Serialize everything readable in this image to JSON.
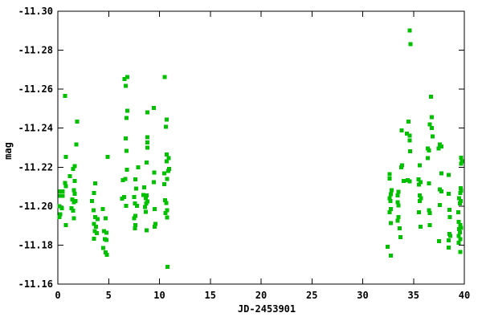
{
  "chart_data": {
    "type": "scatter",
    "title": "",
    "xlabel": "JD-2453901",
    "ylabel": "mag",
    "xlim": [
      0,
      40
    ],
    "ylim_top_to_bottom": [
      -11.3,
      -11.16
    ],
    "y_axis_inverted": true,
    "grid": false,
    "legend": "none",
    "marker": "filled-square",
    "marker_color": "#00c000",
    "marker_size_px": 5,
    "axis_color": "#000000",
    "x_tick_labels": [
      "0",
      "5",
      "10",
      "15",
      "20",
      "25",
      "30",
      "35",
      "40"
    ],
    "y_tick_labels": [
      "-11.30",
      "-11.28",
      "-11.26",
      "-11.24",
      "-11.22",
      "-11.20",
      "-11.18",
      "-11.16"
    ],
    "points": [
      [
        0.71,
        -11.2565
      ],
      [
        1.9,
        -11.2434
      ],
      [
        1.82,
        -11.2317
      ],
      [
        0.79,
        -11.2253
      ],
      [
        1.66,
        -11.2206
      ],
      [
        1.5,
        -11.219
      ],
      [
        1.19,
        -11.2154
      ],
      [
        1.66,
        -11.213
      ],
      [
        0.71,
        -11.2119
      ],
      [
        0.79,
        -11.2102
      ],
      [
        1.58,
        -11.2082
      ],
      [
        0.24,
        -11.2075
      ],
      [
        0.47,
        -11.2075
      ],
      [
        1.66,
        -11.2064
      ],
      [
        0.24,
        -11.2053
      ],
      [
        0.47,
        -11.2053
      ],
      [
        1.42,
        -11.2034
      ],
      [
        1.74,
        -11.2027
      ],
      [
        1.58,
        -11.202
      ],
      [
        0.16,
        -11.1999
      ],
      [
        1.34,
        -11.1989
      ],
      [
        0.4,
        -11.1989
      ],
      [
        1.5,
        -11.1976
      ],
      [
        0.24,
        -11.1958
      ],
      [
        0.16,
        -11.1944
      ],
      [
        1.58,
        -11.1937
      ],
      [
        0.79,
        -11.1902
      ],
      [
        3.69,
        -11.2117
      ],
      [
        3.56,
        -11.2068
      ],
      [
        3.37,
        -11.2027
      ],
      [
        3.5,
        -11.1978
      ],
      [
        3.69,
        -11.1944
      ],
      [
        3.9,
        -11.1933
      ],
      [
        3.56,
        -11.1909
      ],
      [
        3.74,
        -11.1895
      ],
      [
        3.64,
        -11.1872
      ],
      [
        3.82,
        -11.1861
      ],
      [
        3.56,
        -11.1833
      ],
      [
        4.9,
        -11.2253
      ],
      [
        4.43,
        -11.1985
      ],
      [
        4.69,
        -11.1937
      ],
      [
        4.53,
        -11.1872
      ],
      [
        4.8,
        -11.1864
      ],
      [
        4.61,
        -11.1831
      ],
      [
        4.8,
        -11.1827
      ],
      [
        4.48,
        -11.1785
      ],
      [
        4.69,
        -11.1762
      ],
      [
        4.82,
        -11.1751
      ],
      [
        6.82,
        -11.2662
      ],
      [
        6.56,
        -11.2653
      ],
      [
        6.69,
        -11.2618
      ],
      [
        6.82,
        -11.2489
      ],
      [
        6.77,
        -11.2453
      ],
      [
        6.69,
        -11.2348
      ],
      [
        6.77,
        -11.2284
      ],
      [
        6.8,
        -11.2186
      ],
      [
        6.66,
        -11.214
      ],
      [
        6.4,
        -11.2134
      ],
      [
        6.54,
        -11.2047
      ],
      [
        6.32,
        -11.2038
      ],
      [
        6.72,
        -11.2002
      ],
      [
        7.91,
        -11.2199
      ],
      [
        7.64,
        -11.2137
      ],
      [
        7.72,
        -11.2089
      ],
      [
        7.51,
        -11.2047
      ],
      [
        7.59,
        -11.2013
      ],
      [
        7.77,
        -11.2002
      ],
      [
        7.64,
        -11.1951
      ],
      [
        7.51,
        -11.1937
      ],
      [
        7.64,
        -11.1902
      ],
      [
        7.59,
        -11.1886
      ],
      [
        8.8,
        -11.2481
      ],
      [
        8.8,
        -11.2353
      ],
      [
        8.8,
        -11.2326
      ],
      [
        8.8,
        -11.2299
      ],
      [
        8.75,
        -11.2223
      ],
      [
        8.48,
        -11.2096
      ],
      [
        8.43,
        -11.2057
      ],
      [
        8.75,
        -11.2055
      ],
      [
        8.64,
        -11.2041
      ],
      [
        8.83,
        -11.2024
      ],
      [
        8.7,
        -11.2013
      ],
      [
        8.56,
        -11.1996
      ],
      [
        8.64,
        -11.1971
      ],
      [
        8.75,
        -11.1875
      ],
      [
        9.46,
        -11.2503
      ],
      [
        9.49,
        -11.2172
      ],
      [
        9.43,
        -11.2123
      ],
      [
        9.54,
        -11.1985
      ],
      [
        9.62,
        -11.1909
      ],
      [
        9.54,
        -11.1895
      ],
      [
        10.51,
        -11.2662
      ],
      [
        10.72,
        -11.2444
      ],
      [
        10.64,
        -11.2407
      ],
      [
        10.73,
        -11.2264
      ],
      [
        10.91,
        -11.2247
      ],
      [
        10.73,
        -11.2231
      ],
      [
        10.93,
        -11.219
      ],
      [
        10.85,
        -11.2181
      ],
      [
        10.49,
        -11.2168
      ],
      [
        10.75,
        -11.214
      ],
      [
        10.49,
        -11.2112
      ],
      [
        10.54,
        -11.203
      ],
      [
        10.67,
        -11.2016
      ],
      [
        10.75,
        -11.1978
      ],
      [
        10.59,
        -11.1965
      ],
      [
        10.75,
        -11.1941
      ],
      [
        10.8,
        -11.1688
      ],
      [
        32.65,
        -11.2165
      ],
      [
        32.65,
        -11.2141
      ],
      [
        32.83,
        -11.2082
      ],
      [
        32.78,
        -11.2061
      ],
      [
        32.65,
        -11.2041
      ],
      [
        32.73,
        -11.2027
      ],
      [
        32.78,
        -11.1985
      ],
      [
        32.65,
        -11.1968
      ],
      [
        32.78,
        -11.1912
      ],
      [
        32.44,
        -11.1792
      ],
      [
        32.78,
        -11.1746
      ],
      [
        34.62,
        -11.2901
      ],
      [
        34.7,
        -11.2831
      ],
      [
        34.49,
        -11.2434
      ],
      [
        33.83,
        -11.2388
      ],
      [
        34.36,
        -11.2372
      ],
      [
        34.62,
        -11.2362
      ],
      [
        34.62,
        -11.2337
      ],
      [
        34.68,
        -11.2281
      ],
      [
        33.89,
        -11.221
      ],
      [
        33.78,
        -11.2199
      ],
      [
        34.44,
        -11.2133
      ],
      [
        34.05,
        -11.213
      ],
      [
        34.62,
        -11.2127
      ],
      [
        33.52,
        -11.2073
      ],
      [
        33.44,
        -11.2055
      ],
      [
        33.44,
        -11.202
      ],
      [
        33.52,
        -11.2003
      ],
      [
        33.52,
        -11.1944
      ],
      [
        33.44,
        -11.1926
      ],
      [
        33.62,
        -11.1886
      ],
      [
        33.7,
        -11.184
      ],
      [
        36.73,
        -11.2561
      ],
      [
        36.78,
        -11.2457
      ],
      [
        36.6,
        -11.242
      ],
      [
        36.78,
        -11.24
      ],
      [
        36.86,
        -11.2358
      ],
      [
        36.42,
        -11.2296
      ],
      [
        36.52,
        -11.2285
      ],
      [
        36.42,
        -11.2247
      ],
      [
        35.63,
        -11.221
      ],
      [
        35.49,
        -11.2137
      ],
      [
        35.68,
        -11.2123
      ],
      [
        36.52,
        -11.2117
      ],
      [
        35.55,
        -11.211
      ],
      [
        35.63,
        -11.2055
      ],
      [
        35.73,
        -11.2041
      ],
      [
        35.63,
        -11.2027
      ],
      [
        36.52,
        -11.1978
      ],
      [
        35.55,
        -11.1968
      ],
      [
        36.6,
        -11.1965
      ],
      [
        36.6,
        -11.1902
      ],
      [
        35.68,
        -11.1895
      ],
      [
        37.57,
        -11.2317
      ],
      [
        37.73,
        -11.2306
      ],
      [
        37.47,
        -11.2296
      ],
      [
        37.73,
        -11.2169
      ],
      [
        38.45,
        -11.2161
      ],
      [
        37.57,
        -11.2086
      ],
      [
        37.73,
        -11.2075
      ],
      [
        38.44,
        -11.2064
      ],
      [
        37.57,
        -11.2006
      ],
      [
        38.52,
        -11.1981
      ],
      [
        38.58,
        -11.1944
      ],
      [
        38.52,
        -11.1858
      ],
      [
        38.63,
        -11.1848
      ],
      [
        38.47,
        -11.1824
      ],
      [
        37.52,
        -11.182
      ],
      [
        38.44,
        -11.1788
      ],
      [
        39.68,
        -11.2248
      ],
      [
        39.76,
        -11.2231
      ],
      [
        39.68,
        -11.2217
      ],
      [
        39.63,
        -11.2092
      ],
      [
        39.7,
        -11.208
      ],
      [
        39.6,
        -11.2068
      ],
      [
        39.47,
        -11.204
      ],
      [
        39.63,
        -11.2027
      ],
      [
        39.58,
        -11.2013
      ],
      [
        39.42,
        -11.1968
      ],
      [
        39.45,
        -11.1919
      ],
      [
        39.6,
        -11.1902
      ],
      [
        39.68,
        -11.1889
      ],
      [
        39.5,
        -11.1882
      ],
      [
        39.58,
        -11.1865
      ],
      [
        39.45,
        -11.1848
      ],
      [
        39.6,
        -11.1831
      ],
      [
        39.45,
        -11.1813
      ],
      [
        39.6,
        -11.1765
      ]
    ]
  }
}
